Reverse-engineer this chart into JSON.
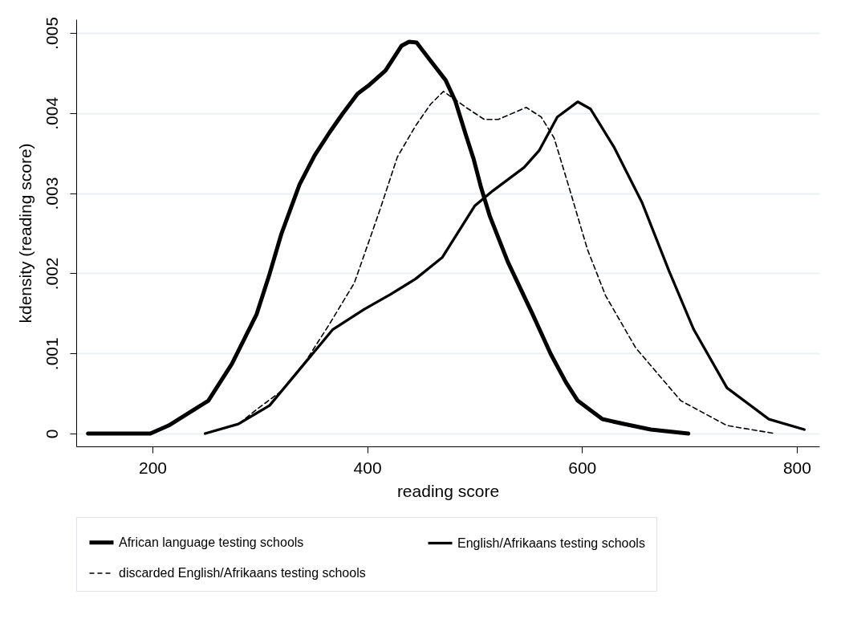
{
  "chart_data": {
    "type": "line",
    "xlabel": "reading score",
    "ylabel": "kdensity (reading score)",
    "xlim": [
      129,
      821
    ],
    "ylim": [
      -0.00016,
      0.00517
    ],
    "xticks": [
      200,
      400,
      600,
      800
    ],
    "yticks": [
      0,
      {
        "value": 0.001,
        "label": ".001"
      },
      {
        "value": 0.002,
        "label": ".002"
      },
      {
        "value": 0.003,
        "label": ".003"
      },
      {
        "value": 0.004,
        "label": ".004"
      },
      {
        "value": 0.005,
        "label": ".005"
      }
    ],
    "grid": "y",
    "legend": "bottom",
    "series": [
      {
        "name": "African language testing schools",
        "color": "#000000",
        "line_style": "solid",
        "x": [
          140,
          161,
          198,
          215,
          252,
          274,
          297,
          309,
          320,
          337,
          351,
          365,
          377,
          391,
          401,
          417,
          432,
          439,
          446,
          458,
          473,
          482,
          492,
          499,
          506,
          514,
          531,
          554,
          571,
          585,
          596,
          619,
          639,
          664,
          699
        ],
        "values": [
          0,
          0,
          0,
          0.0001,
          0.00041,
          0.00087,
          0.00149,
          0.00199,
          0.00249,
          0.00311,
          0.00347,
          0.00376,
          0.00399,
          0.00424,
          0.00434,
          0.00453,
          0.00484,
          0.00489,
          0.00488,
          0.00467,
          0.00441,
          0.00415,
          0.00372,
          0.00343,
          0.00307,
          0.00272,
          0.00214,
          0.00149,
          0.00099,
          0.00064,
          0.00041,
          0.00018,
          0.00012,
          5e-05,
          0
        ]
      },
      {
        "name": "English/Afrikaans testing schools",
        "color": "#000000",
        "line_style": "solid",
        "x": [
          249,
          280,
          309,
          337,
          368,
          397,
          422,
          445,
          470,
          500,
          517,
          546,
          560,
          577,
          596,
          608,
          630,
          656,
          681,
          704,
          735,
          774,
          807
        ],
        "values": [
          0,
          0.00012,
          0.00035,
          0.0008,
          0.0013,
          0.00155,
          0.00174,
          0.00193,
          0.0022,
          0.00284,
          0.00303,
          0.00332,
          0.00353,
          0.00395,
          0.00414,
          0.00405,
          0.00357,
          0.00288,
          0.00203,
          0.0013,
          0.00057,
          0.00018,
          5e-05
        ]
      },
      {
        "name": "discarded English/Afrikaans testing schools",
        "color": "#000000",
        "line_style": "dashed",
        "x": [
          281,
          297,
          320,
          343,
          365,
          388,
          411,
          428,
          445,
          459,
          471,
          492,
          509,
          522,
          548,
          562,
          574,
          588,
          605,
          622,
          650,
          692,
          735,
          780
        ],
        "values": [
          0.00013,
          0.0003,
          0.00053,
          0.00091,
          0.00137,
          0.00188,
          0.00276,
          0.00345,
          0.00384,
          0.00411,
          0.00427,
          0.00407,
          0.00392,
          0.00392,
          0.00407,
          0.00395,
          0.00369,
          0.00307,
          0.0023,
          0.00172,
          0.00107,
          0.00041,
          0.0001,
          0
        ]
      }
    ]
  }
}
